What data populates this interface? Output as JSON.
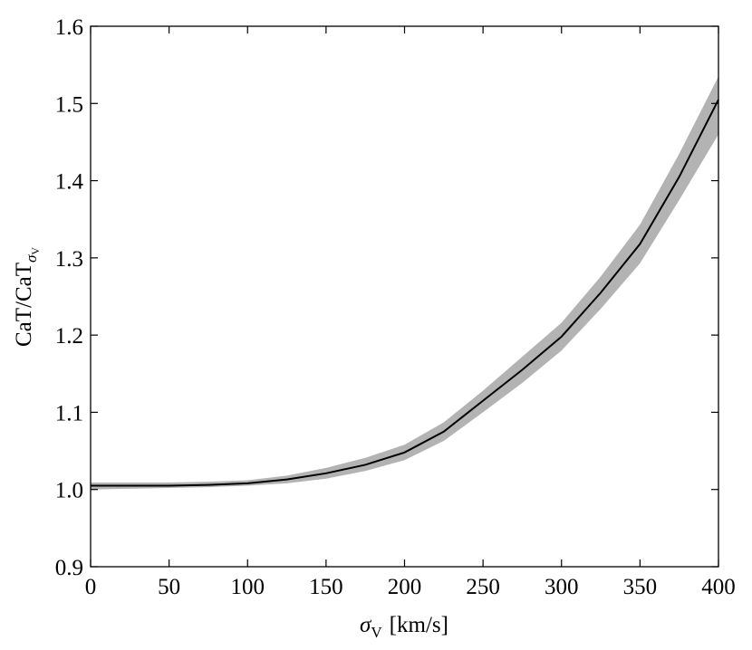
{
  "chart_data": {
    "type": "line",
    "xlabel": {
      "main": "σ",
      "sub": "V",
      "rest": "[km/s]"
    },
    "ylabel": {
      "main": "CaT/CaT",
      "sub": "σ",
      "subsub": "V"
    },
    "x": [
      0,
      25,
      50,
      75,
      100,
      125,
      150,
      175,
      200,
      225,
      250,
      275,
      300,
      325,
      350,
      375,
      400
    ],
    "series": [
      {
        "color": "#000000",
        "values": [
          1.005,
          1.005,
          1.005,
          1.006,
          1.008,
          1.013,
          1.021,
          1.032,
          1.048,
          1.075,
          1.115,
          1.155,
          1.198,
          1.255,
          1.318,
          1.405,
          1.505
        ]
      }
    ],
    "band": {
      "color": "#b3b3b3",
      "lower": [
        1.0,
        1.001,
        1.002,
        1.003,
        1.005,
        1.008,
        1.014,
        1.024,
        1.038,
        1.063,
        1.1,
        1.138,
        1.18,
        1.234,
        1.293,
        1.375,
        1.46
      ],
      "upper": [
        1.009,
        1.009,
        1.009,
        1.01,
        1.012,
        1.018,
        1.028,
        1.041,
        1.058,
        1.087,
        1.128,
        1.172,
        1.216,
        1.276,
        1.343,
        1.435,
        1.535
      ]
    },
    "xlim": [
      0,
      400
    ],
    "xticks": [
      0,
      50,
      100,
      150,
      200,
      250,
      300,
      350,
      400
    ],
    "ylim": [
      0.9,
      1.6
    ],
    "yticks": [
      0.9,
      {
        "value": 1,
        "label": "1.0"
      },
      1.1,
      1.2,
      1.3,
      1.4,
      1.5,
      1.6
    ],
    "grid": false
  }
}
